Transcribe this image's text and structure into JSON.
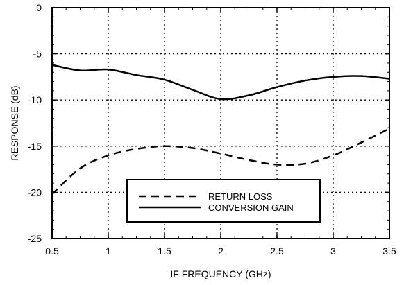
{
  "chart_data": {
    "type": "line",
    "xlabel": "IF FREQUENCY (GHz)",
    "ylabel": "RESPONSE (dB)",
    "xlim": [
      0.5,
      3.5
    ],
    "ylim": [
      -25,
      0
    ],
    "xticks": [
      0.5,
      1,
      1.5,
      2,
      2.5,
      3,
      3.5
    ],
    "xtick_labels": [
      "0.5",
      "1",
      "1.5",
      "2",
      "2.5",
      "3",
      "3.5"
    ],
    "yticks": [
      0,
      -5,
      -10,
      -15,
      -20,
      -25
    ],
    "ytick_labels": [
      "0",
      "-5",
      "-10",
      "-15",
      "-20",
      "-25"
    ],
    "grid": true,
    "legend_position": "bottom-center",
    "series": [
      {
        "name": "RETURN LOSS",
        "style": "dashed",
        "x": [
          0.5,
          0.75,
          1.0,
          1.25,
          1.5,
          1.75,
          2.0,
          2.25,
          2.5,
          2.75,
          3.0,
          3.25,
          3.5
        ],
        "y": [
          -20.2,
          -17.4,
          -16.0,
          -15.3,
          -15.0,
          -15.2,
          -15.8,
          -16.5,
          -17.0,
          -16.9,
          -16.0,
          -14.6,
          -13.1
        ]
      },
      {
        "name": "CONVERSION GAIN",
        "style": "solid",
        "x": [
          0.5,
          0.75,
          1.0,
          1.25,
          1.5,
          1.75,
          2.0,
          2.25,
          2.5,
          2.75,
          3.0,
          3.25,
          3.5
        ],
        "y": [
          -6.2,
          -6.8,
          -6.7,
          -7.3,
          -7.8,
          -8.9,
          -9.9,
          -9.5,
          -8.6,
          -7.9,
          -7.5,
          -7.4,
          -7.7
        ]
      }
    ]
  }
}
